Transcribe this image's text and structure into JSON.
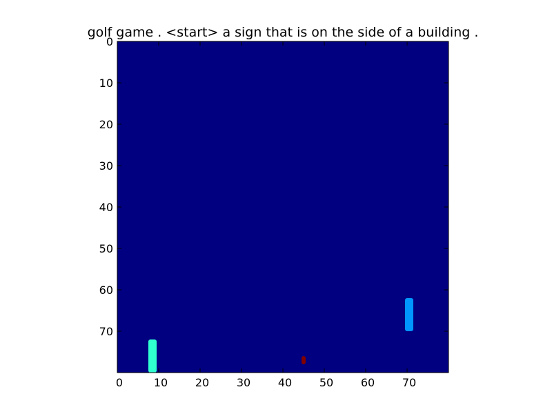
{
  "chart_data": {
    "type": "heatmap",
    "title": "golf game . <start> a sign that is on the side of a building .",
    "xlabel": "",
    "ylabel": "",
    "xlim": [
      0,
      80
    ],
    "ylim": [
      80,
      0
    ],
    "grid": false,
    "xticks": [
      "0",
      "10",
      "20",
      "30",
      "40",
      "50",
      "60",
      "70"
    ],
    "yticks": [
      "0",
      "10",
      "20",
      "30",
      "40",
      "50",
      "60",
      "70"
    ],
    "background_value": 0.0,
    "colormap": "jet",
    "colors": {
      "background": "#000080",
      "paddle_left": "#30ffd0",
      "paddle_right": "#0096ff",
      "ball": "#800000"
    },
    "objects": [
      {
        "name": "paddle_left",
        "x": [
          7.5,
          9.5
        ],
        "y": [
          72,
          80
        ],
        "value": 0.45
      },
      {
        "name": "paddle_right",
        "x": [
          69.5,
          71.5
        ],
        "y": [
          62,
          70
        ],
        "value": 0.3
      },
      {
        "name": "ball",
        "x": [
          44.5,
          45.5
        ],
        "y": [
          76,
          78
        ],
        "value": 1.0
      }
    ]
  }
}
